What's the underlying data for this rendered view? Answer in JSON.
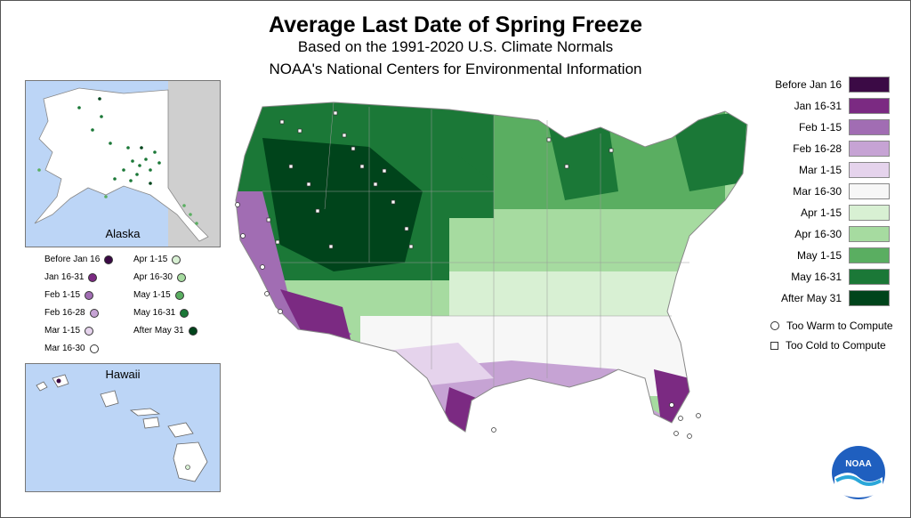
{
  "title": "Average Last Date of Spring Freeze",
  "subtitle": "Based on the 1991-2020 U.S. Climate Normals",
  "source": "NOAA's National Centers for Environmental Information",
  "legend": {
    "items": [
      {
        "label": "Before Jan 16",
        "color": "#3b0a45"
      },
      {
        "label": "Jan 16-31",
        "color": "#7b2a82"
      },
      {
        "label": "Feb 1-15",
        "color": "#a16db3"
      },
      {
        "label": "Feb 16-28",
        "color": "#c6a3d4"
      },
      {
        "label": "Mar 1-15",
        "color": "#e5d3ec"
      },
      {
        "label": "Mar 16-30",
        "color": "#f7f7f7"
      },
      {
        "label": "Apr 1-15",
        "color": "#d8f0d3"
      },
      {
        "label": "Apr 16-30",
        "color": "#a6dba0"
      },
      {
        "label": "May 1-15",
        "color": "#5aae61"
      },
      {
        "label": "May 16-31",
        "color": "#1b7837"
      },
      {
        "label": "After May 31",
        "color": "#00441b"
      }
    ],
    "too_warm": "Too Warm to Compute",
    "too_cold": "Too Cold to Compute"
  },
  "alaska": {
    "label": "Alaska",
    "key_left": [
      {
        "label": "Before Jan 16",
        "color": "#3b0a45"
      },
      {
        "label": "Jan 16-31",
        "color": "#7b2a82"
      },
      {
        "label": "Feb 1-15",
        "color": "#a16db3"
      },
      {
        "label": "Feb 16-28",
        "color": "#c6a3d4"
      },
      {
        "label": "Mar 1-15",
        "color": "#e5d3ec"
      },
      {
        "label": "Mar 16-30",
        "color": "#ffffff"
      }
    ],
    "key_right": [
      {
        "label": "Apr 1-15",
        "color": "#d8f0d3"
      },
      {
        "label": "Apr 16-30",
        "color": "#a6dba0"
      },
      {
        "label": "May 1-15",
        "color": "#5aae61"
      },
      {
        "label": "May 16-31",
        "color": "#1b7837"
      },
      {
        "label": "After May 31",
        "color": "#00441b"
      }
    ]
  },
  "hawaii": {
    "label": "Hawaii"
  },
  "logo": {
    "text": "NOAA"
  }
}
